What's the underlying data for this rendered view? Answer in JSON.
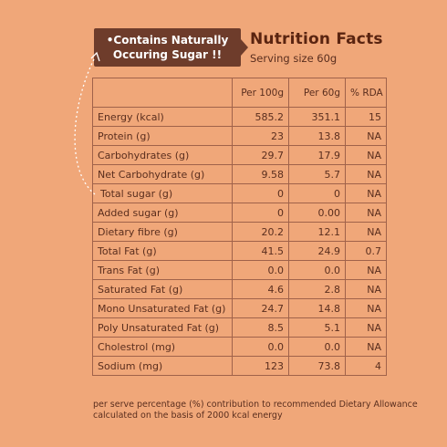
{
  "callout": {
    "line1": "•Contains Naturally",
    "line2": "Occuring Sugar !!"
  },
  "header": {
    "title": "Nutrition Facts",
    "serving": "Serving size 60g"
  },
  "table": {
    "columns": [
      "",
      "Per 100g",
      "Per 60g",
      "% RDA"
    ],
    "rows": [
      {
        "name": "Energy (kcal)",
        "per100": "585.2",
        "per60": "351.1",
        "rda": "15"
      },
      {
        "name": "Protein (g)",
        "per100": "23",
        "per60": "13.8",
        "rda": "NA"
      },
      {
        "name": "Carbohydrates (g)",
        "per100": "29.7",
        "per60": "17.9",
        "rda": "NA"
      },
      {
        "name": "Net Carbohydrate (g)",
        "per100": "9.58",
        "per60": "5.7",
        "rda": "NA"
      },
      {
        "name": "Total sugar (g)",
        "per100": "0",
        "per60": "0",
        "rda": "NA"
      },
      {
        "name": "Added sugar (g)",
        "per100": "0",
        "per60": "0.00",
        "rda": "NA"
      },
      {
        "name": "Dietary fibre (g)",
        "per100": "20.2",
        "per60": "12.1",
        "rda": "NA"
      },
      {
        "name": "Total Fat (g)",
        "per100": "41.5",
        "per60": "24.9",
        "rda": "0.7"
      },
      {
        "name": "Trans Fat (g)",
        "per100": "0.0",
        "per60": "0.0",
        "rda": "NA"
      },
      {
        "name": "Saturated Fat (g)",
        "per100": "4.6",
        "per60": "2.8",
        "rda": "NA"
      },
      {
        "name": "Mono Unsaturated Fat (g)",
        "per100": "24.7",
        "per60": "14.8",
        "rda": "NA"
      },
      {
        "name": "Poly Unsaturated Fat (g)",
        "per100": "8.5",
        "per60": "5.1",
        "rda": "NA"
      },
      {
        "name": "Cholestrol (mg)",
        "per100": "0.0",
        "per60": "0.0",
        "rda": "NA"
      },
      {
        "name": "Sodium (mg)",
        "per100": "123",
        "per60": "73.8",
        "rda": "4"
      }
    ]
  },
  "footnote": "per serve percentage (%) contribution to recommended Dietary Allowance calculated on the basis of 2000 kcal energy",
  "colors": {
    "background": "#f0a779",
    "callout": "#6e3c2b",
    "text": "#5a2e1e",
    "border": "#a0624a"
  }
}
